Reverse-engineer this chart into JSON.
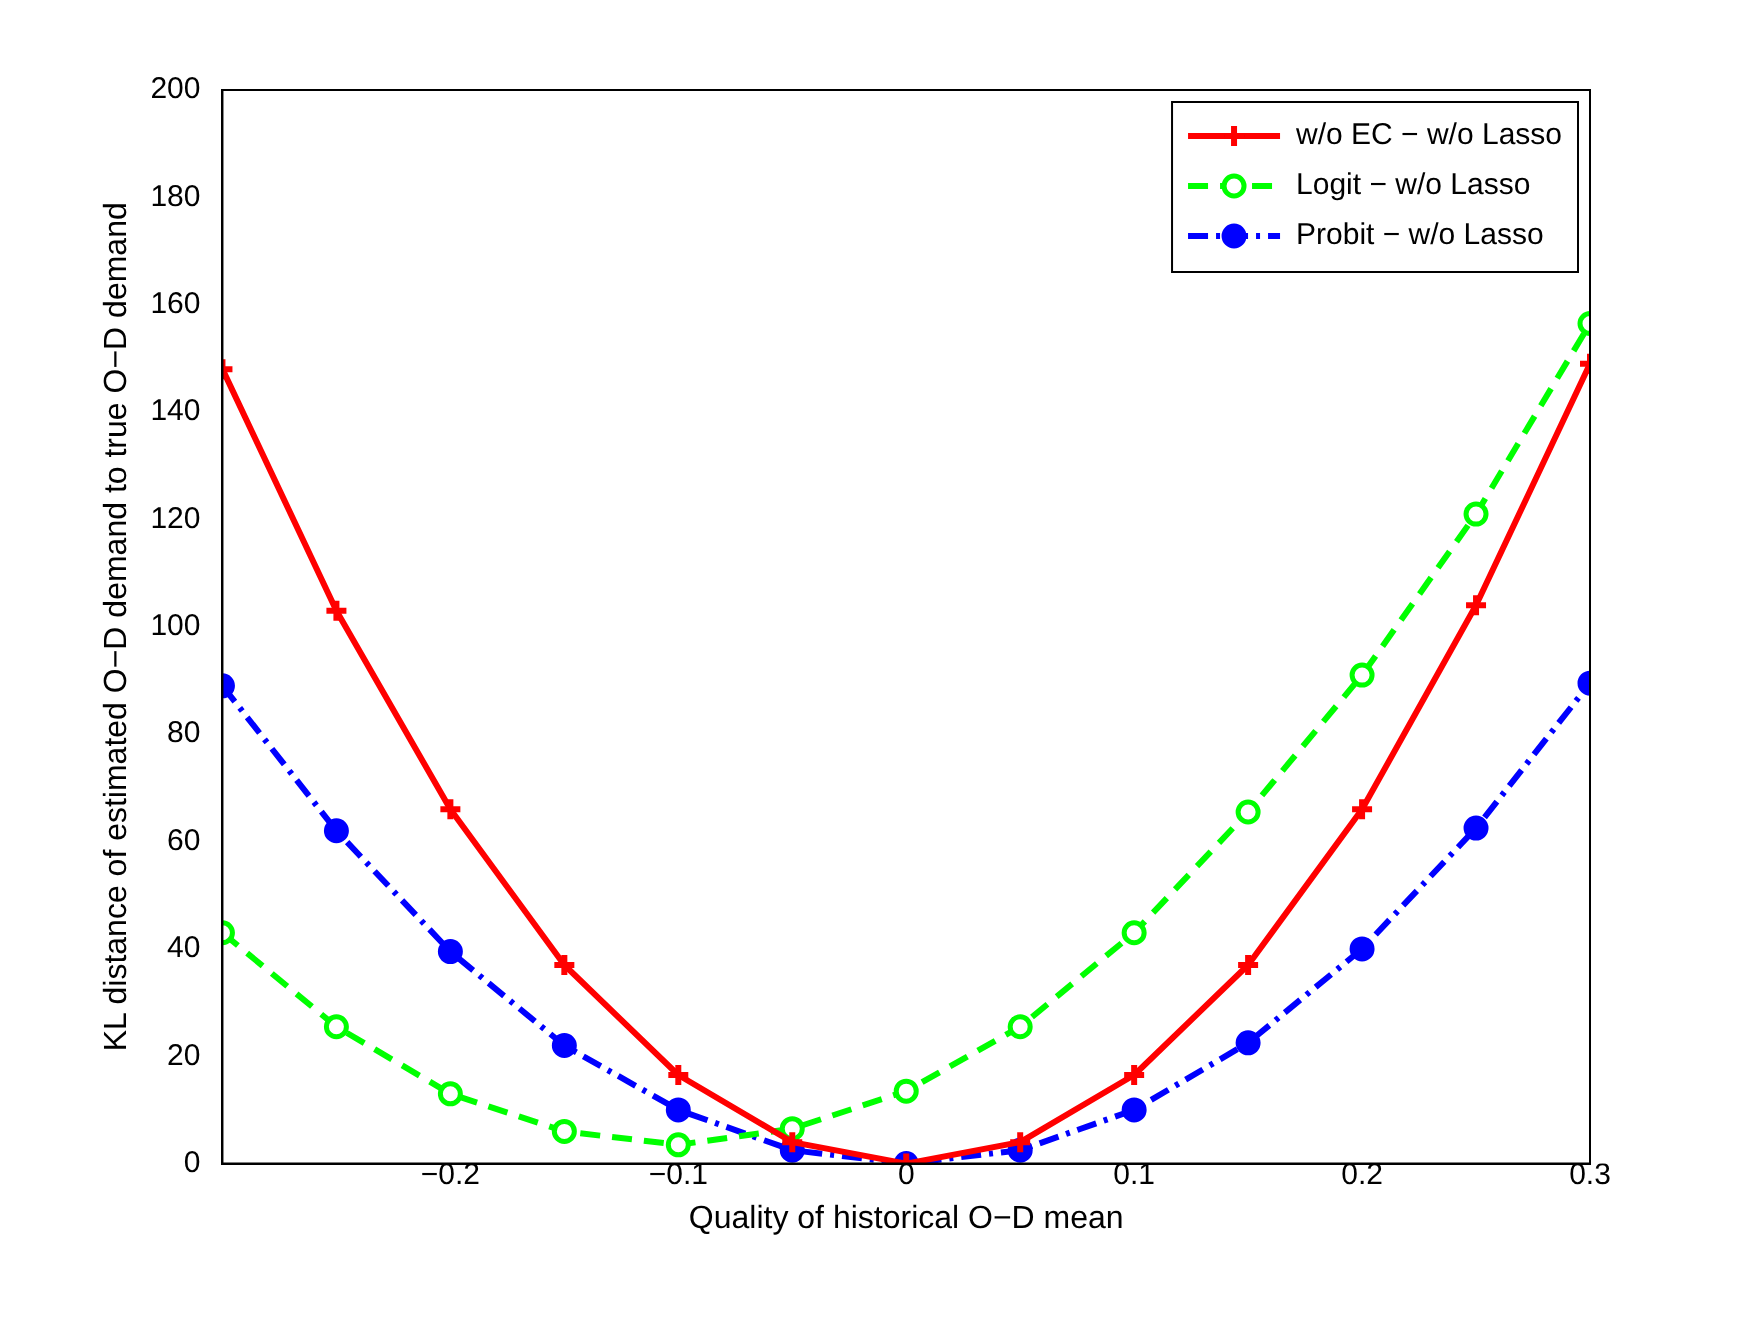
{
  "chart_data": {
    "type": "line",
    "xlabel": "Quality of historical O−D mean",
    "ylabel": "KL distance of estimated O−D demand to true O−D demand",
    "x": [
      -0.3,
      -0.25,
      -0.2,
      -0.15,
      -0.1,
      -0.05,
      0,
      0.05,
      0.1,
      0.15,
      0.2,
      0.25,
      0.3
    ],
    "series": [
      {
        "name": "w/o EC − w/o Lasso",
        "color": "#ff0000",
        "marker": "cross",
        "line_style": "solid",
        "values": [
          148,
          103,
          66,
          37,
          16.5,
          4,
          0,
          4,
          16.5,
          37,
          66,
          104,
          149
        ]
      },
      {
        "name": "Logit − w/o Lasso",
        "color": "#00ff00",
        "marker": "circle",
        "line_style": "dashed",
        "values": [
          43,
          25.5,
          13,
          6,
          3.5,
          6.5,
          13.5,
          25.5,
          43,
          65.5,
          91,
          121,
          156.5
        ]
      },
      {
        "name": "Probit − w/o Lasso",
        "color": "#0000ff",
        "marker": "circle",
        "line_style": "dashdot",
        "values": [
          89,
          62,
          39.5,
          22,
          10,
          2.5,
          0,
          2.5,
          10,
          22.5,
          40,
          62.5,
          89.5
        ]
      }
    ],
    "xlim": [
      -0.3,
      0.3
    ],
    "xticks": [
      -0.2,
      -0.1,
      0,
      0.1,
      0.2,
      0.3
    ],
    "ylim": [
      0,
      200
    ],
    "yticks": [
      0,
      20,
      40,
      60,
      80,
      100,
      120,
      140,
      160,
      180,
      200
    ],
    "grid": false,
    "legend": "top right"
  }
}
